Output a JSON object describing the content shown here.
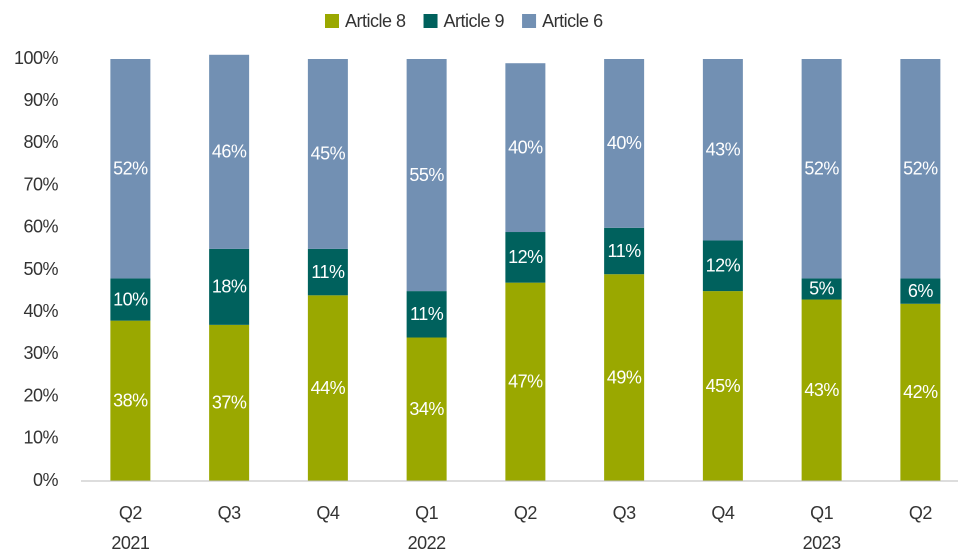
{
  "chart_data": {
    "type": "stacked_bar",
    "categories": [
      "Q2",
      "Q3",
      "Q4",
      "Q1",
      "Q2",
      "Q3",
      "Q4",
      "Q1",
      "Q2"
    ],
    "category_groups": [
      "2021",
      null,
      null,
      "2022",
      null,
      null,
      null,
      "2023",
      null
    ],
    "series": [
      {
        "name": "Article 8",
        "color": "#9aa800",
        "values": [
          38,
          37,
          44,
          34,
          47,
          49,
          45,
          43,
          42
        ],
        "value_labels": [
          "38%",
          "37%",
          "44%",
          "34%",
          "47%",
          "49%",
          "45%",
          "43%",
          "42%"
        ]
      },
      {
        "name": "Article 9",
        "color": "#00615d",
        "values": [
          10,
          18,
          11,
          11,
          12,
          11,
          12,
          5,
          6
        ],
        "value_labels": [
          "10%",
          "18%",
          "11%",
          "11%",
          "12%",
          "11%",
          "12%",
          "5%",
          "6%"
        ]
      },
      {
        "name": "Article 6",
        "color": "#7290b3",
        "values": [
          52,
          46,
          45,
          55,
          40,
          40,
          43,
          52,
          52
        ],
        "value_labels": [
          "52%",
          "46%",
          "45%",
          "55%",
          "40%",
          "40%",
          "43%",
          "52%",
          "52%"
        ]
      }
    ],
    "ylim": [
      0,
      100
    ],
    "yticks": [
      {
        "value": 0,
        "label": "0%"
      },
      {
        "value": 10,
        "label": "10%"
      },
      {
        "value": 20,
        "label": "20%"
      },
      {
        "value": 30,
        "label": "30%"
      },
      {
        "value": 40,
        "label": "40%"
      },
      {
        "value": 50,
        "label": "50%"
      },
      {
        "value": 60,
        "label": "60%"
      },
      {
        "value": 70,
        "label": "70%"
      },
      {
        "value": 80,
        "label": "80%"
      },
      {
        "value": 90,
        "label": "90%"
      },
      {
        "value": 100,
        "label": "100%"
      }
    ],
    "legend": "top"
  }
}
